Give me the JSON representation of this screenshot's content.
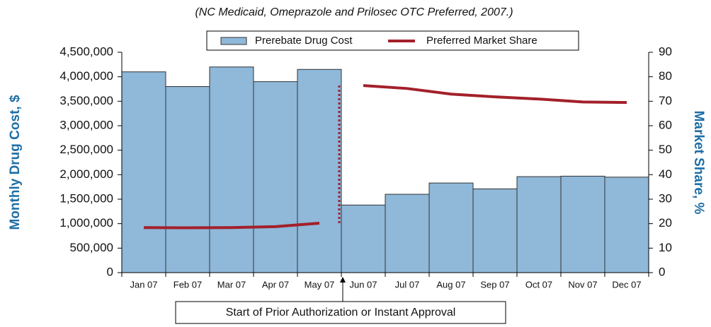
{
  "chart_data": {
    "type": "bar-line",
    "title": "(NC Medicaid, Omeprazole and Prilosec OTC Preferred, 2007.)",
    "ylabel": "Monthly Drug Cost, $",
    "y2label": "Market Share, %",
    "annotation": "Start of Prior Authorization or Instant Approval",
    "categories": [
      "Jan 07",
      "Feb 07",
      "Mar 07",
      "Apr 07",
      "May 07",
      "Jun 07",
      "Jul 07",
      "Aug 07",
      "Sep 07",
      "Oct 07",
      "Nov 07",
      "Dec 07"
    ],
    "series": [
      {
        "name": "Prerebate Drug Cost",
        "color": "#8fb8d9",
        "type": "bar",
        "values": [
          4100000,
          3800000,
          4200000,
          3900000,
          4150000,
          1380000,
          1600000,
          1830000,
          1710000,
          1960000,
          1970000,
          1950000
        ]
      },
      {
        "name": "Preferred Market Share",
        "color": "#a3202a",
        "type": "line",
        "axis": "y2",
        "values": [
          18.4,
          18.3,
          18.4,
          18.8,
          20.2,
          76.4,
          75.2,
          72.9,
          71.8,
          70.9,
          69.7,
          69.5
        ]
      }
    ],
    "ylim": [
      0,
      4500000
    ],
    "yticks": [
      0,
      {
        "value": 500000,
        "label": "500,000"
      },
      {
        "value": 1000000,
        "label": "1,000,000"
      },
      {
        "value": 1500000,
        "label": "1,500,000"
      },
      {
        "value": 2000000,
        "label": "2,000,000"
      },
      {
        "value": 2500000,
        "label": "2,500,000"
      },
      {
        "value": 3000000,
        "label": "3,000,000"
      },
      {
        "value": 3500000,
        "label": "3,500,000"
      },
      {
        "value": 4000000,
        "label": "4,000,000"
      },
      {
        "value": 4500000,
        "label": "4,500,000"
      }
    ],
    "y2lim": [
      0,
      90
    ],
    "y2ticks": [
      0,
      10,
      20,
      30,
      40,
      50,
      60,
      70,
      80,
      90
    ]
  }
}
